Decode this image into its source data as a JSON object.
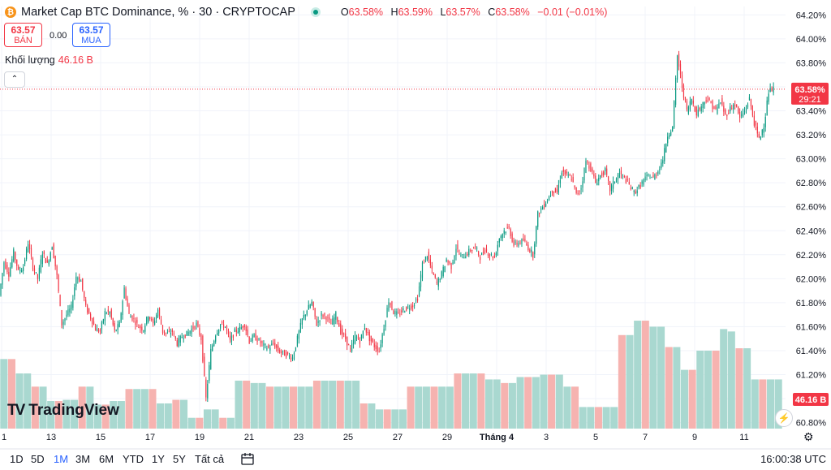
{
  "header": {
    "icon": "bitcoin-icon",
    "title": "Market Cap BTC Dominance, % · 30 · CRYPTOCAP",
    "ohlc": [
      {
        "k": "O",
        "v": "63.58%"
      },
      {
        "k": "H",
        "v": "63.59%"
      },
      {
        "k": "L",
        "v": "63.57%"
      },
      {
        "k": "C",
        "v": "63.58%"
      }
    ],
    "change": "−0.01 (−0.01%)"
  },
  "trade": {
    "sell_price": "63.57",
    "sell_label": "BÁN",
    "spread": "0.00",
    "buy_price": "63.57",
    "buy_label": "MUA"
  },
  "volume": {
    "label": "Khối lượng",
    "value": "46.16 B"
  },
  "logo": {
    "text": "TradingView"
  },
  "bottom": {
    "ranges": [
      "1D",
      "5D",
      "1M",
      "3M",
      "6M",
      "YTD",
      "1Y",
      "5Y",
      "Tất cả"
    ],
    "active": "1M",
    "clock": "16:00:38 UTC"
  },
  "colors": {
    "up": "#089981",
    "down": "#f23645",
    "up_vol": "#a9d8d0",
    "down_vol": "#f6b3b0",
    "accent": "#2962ff"
  },
  "chart_data": {
    "type": "candlestick",
    "y_ticks": [
      "64.20%",
      "64.00%",
      "63.80%",
      "63.60%",
      "63.40%",
      "63.20%",
      "63.00%",
      "62.80%",
      "62.60%",
      "62.40%",
      "62.20%",
      "62.00%",
      "61.80%",
      "61.60%",
      "61.40%",
      "61.20%",
      "61.00%",
      "60.80%"
    ],
    "ylim": [
      60.75,
      64.27
    ],
    "x_ticks": [
      "1",
      "13",
      "15",
      "17",
      "19",
      "21",
      "23",
      "25",
      "27",
      "29",
      "Tháng 4",
      "3",
      "5",
      "7",
      "9",
      "11"
    ],
    "current_price_label": "63.58%",
    "countdown": "29:21",
    "current_price": 63.58,
    "volume_label": "46.16 B",
    "price_path": [
      [
        0,
        61.86
      ],
      [
        1,
        62.14
      ],
      [
        2,
        62.04
      ],
      [
        3,
        62.22
      ],
      [
        4,
        62.06
      ],
      [
        5,
        62.1
      ],
      [
        6,
        62.3
      ],
      [
        7,
        62.1
      ],
      [
        8,
        62.0
      ],
      [
        9,
        62.22
      ],
      [
        10,
        62.12
      ],
      [
        11,
        62.28
      ],
      [
        12,
        62.02
      ],
      [
        13,
        61.62
      ],
      [
        14,
        61.7
      ],
      [
        15,
        61.76
      ],
      [
        16,
        62.02
      ],
      [
        17,
        61.98
      ],
      [
        18,
        61.76
      ],
      [
        19,
        61.68
      ],
      [
        20,
        61.58
      ],
      [
        21,
        61.56
      ],
      [
        22,
        61.72
      ],
      [
        23,
        61.72
      ],
      [
        24,
        61.56
      ],
      [
        25,
        61.62
      ],
      [
        26,
        61.92
      ],
      [
        27,
        61.7
      ],
      [
        28,
        61.66
      ],
      [
        29,
        61.6
      ],
      [
        30,
        61.58
      ],
      [
        31,
        61.7
      ],
      [
        32,
        61.62
      ],
      [
        33,
        61.74
      ],
      [
        34,
        61.56
      ],
      [
        35,
        61.54
      ],
      [
        36,
        61.56
      ],
      [
        37,
        61.46
      ],
      [
        38,
        61.52
      ],
      [
        39,
        61.54
      ],
      [
        40,
        61.58
      ],
      [
        41,
        61.62
      ],
      [
        42,
        61.5
      ],
      [
        43,
        61.0
      ],
      [
        44,
        61.4
      ],
      [
        45,
        61.54
      ],
      [
        46,
        61.62
      ],
      [
        47,
        61.6
      ],
      [
        48,
        61.48
      ],
      [
        49,
        61.56
      ],
      [
        50,
        61.58
      ],
      [
        51,
        61.62
      ],
      [
        52,
        61.48
      ],
      [
        53,
        61.52
      ],
      [
        54,
        61.48
      ],
      [
        55,
        61.44
      ],
      [
        56,
        61.42
      ],
      [
        57,
        61.46
      ],
      [
        58,
        61.4
      ],
      [
        59,
        61.38
      ],
      [
        60,
        61.36
      ],
      [
        61,
        61.34
      ],
      [
        62,
        61.5
      ],
      [
        63,
        61.66
      ],
      [
        64,
        61.74
      ],
      [
        65,
        61.8
      ],
      [
        66,
        61.62
      ],
      [
        67,
        61.7
      ],
      [
        68,
        61.68
      ],
      [
        69,
        61.62
      ],
      [
        70,
        61.7
      ],
      [
        71,
        61.56
      ],
      [
        72,
        61.5
      ],
      [
        73,
        61.4
      ],
      [
        74,
        61.52
      ],
      [
        75,
        61.48
      ],
      [
        76,
        61.6
      ],
      [
        77,
        61.5
      ],
      [
        78,
        61.44
      ],
      [
        79,
        61.4
      ],
      [
        80,
        61.6
      ],
      [
        81,
        61.82
      ],
      [
        82,
        61.72
      ],
      [
        83,
        61.7
      ],
      [
        84,
        61.74
      ],
      [
        85,
        61.76
      ],
      [
        86,
        61.78
      ],
      [
        87,
        61.84
      ],
      [
        88,
        62.12
      ],
      [
        89,
        62.2
      ],
      [
        90,
        62.06
      ],
      [
        91,
        61.96
      ],
      [
        92,
        62.04
      ],
      [
        93,
        62.16
      ],
      [
        94,
        62.1
      ],
      [
        95,
        62.26
      ],
      [
        96,
        62.18
      ],
      [
        97,
        62.2
      ],
      [
        98,
        62.24
      ],
      [
        99,
        62.26
      ],
      [
        100,
        62.18
      ],
      [
        101,
        62.24
      ],
      [
        102,
        62.2
      ],
      [
        103,
        62.18
      ],
      [
        104,
        62.34
      ],
      [
        105,
        62.4
      ],
      [
        106,
        62.42
      ],
      [
        107,
        62.28
      ],
      [
        108,
        62.3
      ],
      [
        109,
        62.32
      ],
      [
        110,
        62.26
      ],
      [
        111,
        62.2
      ],
      [
        112,
        62.54
      ],
      [
        113,
        62.6
      ],
      [
        114,
        62.66
      ],
      [
        115,
        62.74
      ],
      [
        116,
        62.72
      ],
      [
        117,
        62.9
      ],
      [
        118,
        62.86
      ],
      [
        119,
        62.84
      ],
      [
        120,
        62.7
      ],
      [
        121,
        62.76
      ],
      [
        122,
        62.98
      ],
      [
        123,
        62.92
      ],
      [
        124,
        62.8
      ],
      [
        125,
        62.86
      ],
      [
        126,
        62.9
      ],
      [
        127,
        62.74
      ],
      [
        128,
        62.82
      ],
      [
        129,
        62.88
      ],
      [
        130,
        62.84
      ],
      [
        131,
        62.78
      ],
      [
        132,
        62.72
      ],
      [
        133,
        62.76
      ],
      [
        134,
        62.82
      ],
      [
        135,
        62.86
      ],
      [
        136,
        62.84
      ],
      [
        137,
        62.9
      ],
      [
        138,
        63.0
      ],
      [
        139,
        63.2
      ],
      [
        140,
        63.26
      ],
      [
        141,
        63.86
      ],
      [
        142,
        63.6
      ],
      [
        143,
        63.4
      ],
      [
        144,
        63.5
      ],
      [
        145,
        63.38
      ],
      [
        146,
        63.44
      ],
      [
        147,
        63.5
      ],
      [
        148,
        63.46
      ],
      [
        149,
        63.4
      ],
      [
        150,
        63.48
      ],
      [
        151,
        63.36
      ],
      [
        152,
        63.42
      ],
      [
        153,
        63.46
      ],
      [
        154,
        63.34
      ],
      [
        155,
        63.4
      ],
      [
        156,
        63.5
      ],
      [
        157,
        63.3
      ],
      [
        158,
        63.16
      ],
      [
        159,
        63.28
      ],
      [
        160,
        63.56
      ],
      [
        161,
        63.58
      ]
    ],
    "volume": [
      [
        0,
        61.33
      ],
      [
        1,
        61.33
      ],
      [
        2,
        61.21
      ],
      [
        3,
        61.21
      ],
      [
        4,
        61.1
      ],
      [
        5,
        61.1
      ],
      [
        6,
        60.98
      ],
      [
        7,
        60.98
      ],
      [
        8,
        60.99
      ],
      [
        9,
        60.99
      ],
      [
        10,
        61.1
      ],
      [
        11,
        61.1
      ],
      [
        12,
        60.95
      ],
      [
        13,
        60.95
      ],
      [
        14,
        60.98
      ],
      [
        15,
        60.98
      ],
      [
        16,
        61.08
      ],
      [
        17,
        61.08
      ],
      [
        18,
        61.08
      ],
      [
        19,
        61.08
      ],
      [
        20,
        60.96
      ],
      [
        21,
        60.96
      ],
      [
        22,
        60.99
      ],
      [
        23,
        60.99
      ],
      [
        24,
        60.84
      ],
      [
        25,
        60.84
      ],
      [
        26,
        60.91
      ],
      [
        27,
        60.91
      ],
      [
        28,
        60.84
      ],
      [
        29,
        60.84
      ],
      [
        30,
        61.15
      ],
      [
        31,
        61.15
      ],
      [
        32,
        61.13
      ],
      [
        33,
        61.13
      ],
      [
        34,
        61.1
      ],
      [
        35,
        61.1
      ],
      [
        36,
        61.1
      ],
      [
        37,
        61.1
      ],
      [
        38,
        61.1
      ],
      [
        39,
        61.1
      ],
      [
        40,
        61.15
      ],
      [
        41,
        61.15
      ],
      [
        42,
        61.15
      ],
      [
        43,
        61.15
      ],
      [
        44,
        61.15
      ],
      [
        45,
        61.15
      ],
      [
        46,
        60.96
      ],
      [
        47,
        60.96
      ],
      [
        48,
        60.91
      ],
      [
        49,
        60.91
      ],
      [
        50,
        60.91
      ],
      [
        51,
        60.91
      ],
      [
        52,
        61.1
      ],
      [
        53,
        61.1
      ],
      [
        54,
        61.1
      ],
      [
        55,
        61.1
      ],
      [
        56,
        61.1
      ],
      [
        57,
        61.1
      ],
      [
        58,
        61.21
      ],
      [
        59,
        61.21
      ],
      [
        60,
        61.21
      ],
      [
        61,
        61.21
      ],
      [
        62,
        61.16
      ],
      [
        63,
        61.16
      ],
      [
        64,
        61.13
      ],
      [
        65,
        61.13
      ],
      [
        66,
        61.18
      ],
      [
        67,
        61.18
      ],
      [
        68,
        61.18
      ],
      [
        69,
        61.2
      ],
      [
        70,
        61.2
      ],
      [
        71,
        61.2
      ],
      [
        72,
        61.1
      ],
      [
        73,
        61.1
      ],
      [
        74,
        60.93
      ],
      [
        75,
        60.93
      ],
      [
        76,
        60.93
      ],
      [
        77,
        60.93
      ],
      [
        78,
        60.93
      ],
      [
        79,
        61.53
      ],
      [
        80,
        61.53
      ],
      [
        81,
        61.65
      ],
      [
        82,
        61.65
      ],
      [
        83,
        61.6
      ],
      [
        84,
        61.6
      ],
      [
        85,
        61.43
      ],
      [
        86,
        61.43
      ],
      [
        87,
        61.24
      ],
      [
        88,
        61.24
      ],
      [
        89,
        61.4
      ],
      [
        90,
        61.4
      ],
      [
        91,
        61.4
      ],
      [
        92,
        61.58
      ],
      [
        93,
        61.56
      ],
      [
        94,
        61.42
      ],
      [
        95,
        61.42
      ],
      [
        96,
        61.16
      ],
      [
        97,
        61.16
      ],
      [
        98,
        61.16
      ],
      [
        99,
        61.16
      ]
    ]
  }
}
